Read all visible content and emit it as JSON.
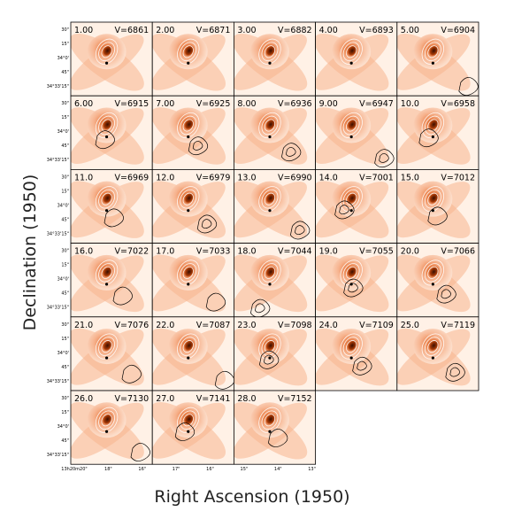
{
  "figure": {
    "xlabel": "Right Ascension (1950)",
    "ylabel": "Declination (1950)",
    "grid_columns": 5,
    "panels": [
      {
        "index": "1.00",
        "velocity": "V=6861"
      },
      {
        "index": "2.00",
        "velocity": "V=6871"
      },
      {
        "index": "3.00",
        "velocity": "V=6882"
      },
      {
        "index": "4.00",
        "velocity": "V=6893"
      },
      {
        "index": "5.00",
        "velocity": "V=6904"
      },
      {
        "index": "6.00",
        "velocity": "V=6915"
      },
      {
        "index": "7.00",
        "velocity": "V=6925"
      },
      {
        "index": "8.00",
        "velocity": "V=6936"
      },
      {
        "index": "9.00",
        "velocity": "V=6947"
      },
      {
        "index": "10.0",
        "velocity": "V=6958"
      },
      {
        "index": "11.0",
        "velocity": "V=6969"
      },
      {
        "index": "12.0",
        "velocity": "V=6979"
      },
      {
        "index": "13.0",
        "velocity": "V=6990"
      },
      {
        "index": "14.0",
        "velocity": "V=7001"
      },
      {
        "index": "15.0",
        "velocity": "V=7012"
      },
      {
        "index": "16.0",
        "velocity": "V=7022"
      },
      {
        "index": "17.0",
        "velocity": "V=7033"
      },
      {
        "index": "18.0",
        "velocity": "V=7044"
      },
      {
        "index": "19.0",
        "velocity": "V=7055"
      },
      {
        "index": "20.0",
        "velocity": "V=7066"
      },
      {
        "index": "21.0",
        "velocity": "V=7076"
      },
      {
        "index": "22.0",
        "velocity": "V=7087"
      },
      {
        "index": "23.0",
        "velocity": "V=7098"
      },
      {
        "index": "24.0",
        "velocity": "V=7109"
      },
      {
        "index": "25.0",
        "velocity": "V=7119"
      },
      {
        "index": "26.0",
        "velocity": "V=7130"
      },
      {
        "index": "27.0",
        "velocity": "V=7141"
      },
      {
        "index": "28.0",
        "velocity": "V=7152"
      }
    ],
    "dec_tick_labels": [
      "30\"",
      "15\"",
      "34°0'",
      "45\"",
      "34°33'15\""
    ],
    "ra_tick_labels": [
      "13h20m20\"",
      "18\"",
      "16\"",
      "17\"",
      "16\"",
      "15\"",
      "14\"",
      "13\""
    ],
    "colors": {
      "background_glow": "#f4a072",
      "core": "#8a2a00",
      "halo": "#fde3d2",
      "contour_overlay": "#ffffff",
      "contour_hi": "#000000"
    }
  }
}
